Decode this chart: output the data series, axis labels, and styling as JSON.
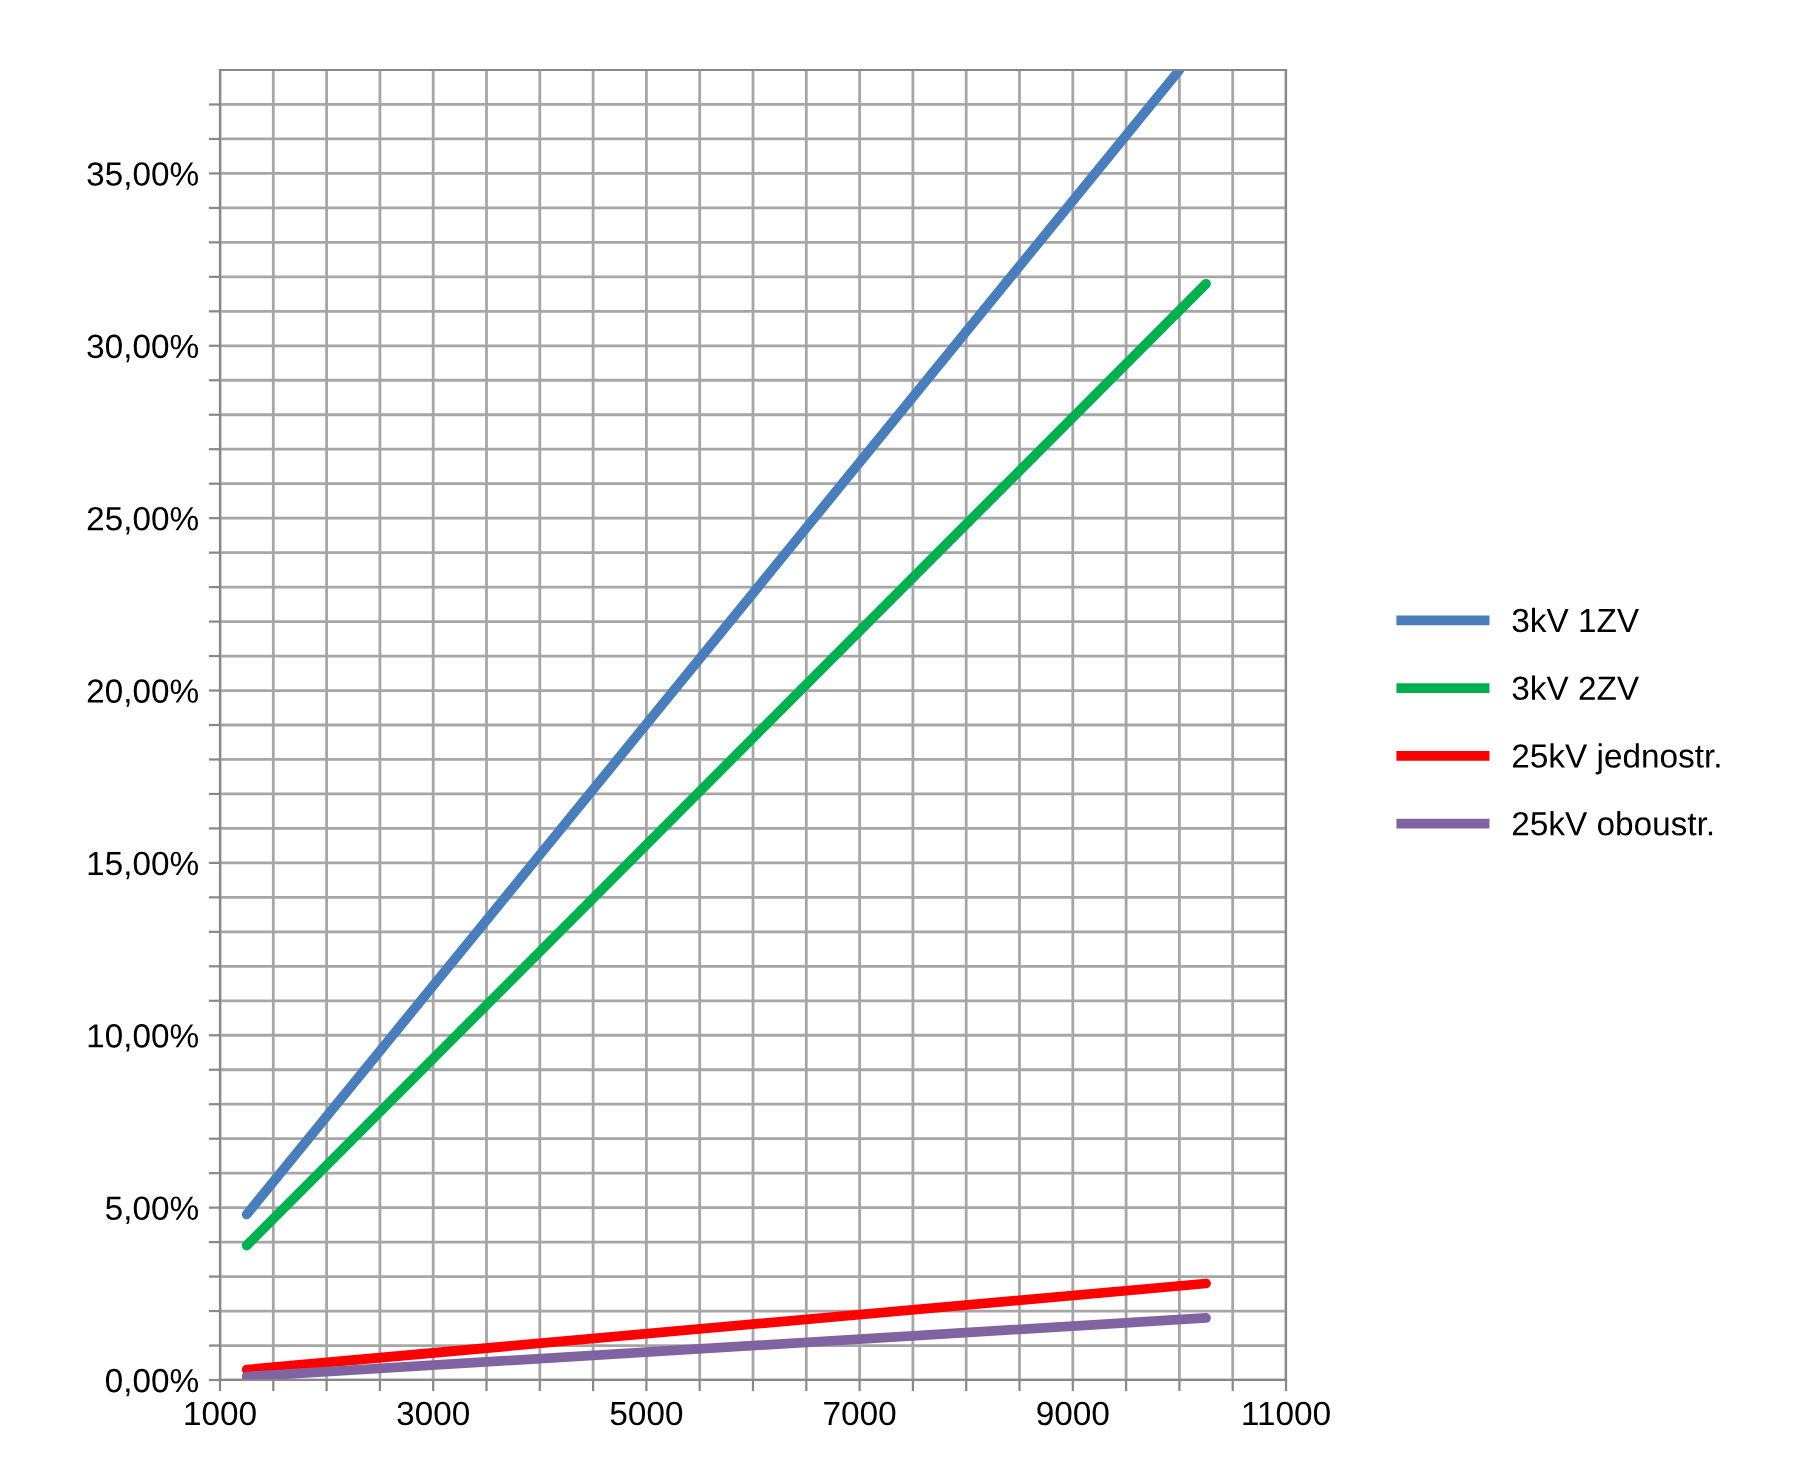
{
  "chart_data": {
    "type": "line",
    "x": [
      1250,
      10250
    ],
    "series": [
      {
        "name": "3kV 1ZV",
        "color": "#4a7ebb",
        "x": [
          1250,
          10000
        ],
        "values": [
          4.8,
          38
        ]
      },
      {
        "name": "3kV 2ZV",
        "color": "#00b050",
        "values": [
          3.9,
          31.8
        ]
      },
      {
        "name": "25kV jednostr.",
        "color": "#ff0000",
        "values": [
          0.3,
          2.8
        ]
      },
      {
        "name": "25kV oboustr.",
        "color": "#8064a2",
        "values": [
          0.1,
          1.8
        ]
      }
    ],
    "xlim": [
      1000,
      11000
    ],
    "xticks": [
      1000,
      {
        "value": 1500,
        "label": null
      },
      {
        "value": 2000,
        "label": null
      },
      {
        "value": 2500,
        "label": null
      },
      3000,
      {
        "value": 3500,
        "label": null
      },
      {
        "value": 4000,
        "label": null
      },
      {
        "value": 4500,
        "label": null
      },
      5000,
      {
        "value": 5500,
        "label": null
      },
      {
        "value": 6000,
        "label": null
      },
      {
        "value": 6500,
        "label": null
      },
      7000,
      {
        "value": 7500,
        "label": null
      },
      {
        "value": 8000,
        "label": null
      },
      {
        "value": 8500,
        "label": null
      },
      9000,
      {
        "value": 9500,
        "label": null
      },
      {
        "value": 10000,
        "label": null
      },
      {
        "value": 10500,
        "label": null
      },
      11000
    ],
    "ylim": [
      0,
      38
    ],
    "yticks": [
      {
        "value": 0,
        "label": "0,00%"
      },
      {
        "value": 1,
        "label": null
      },
      {
        "value": 2,
        "label": null
      },
      {
        "value": 3,
        "label": null
      },
      {
        "value": 4,
        "label": null
      },
      {
        "value": 5,
        "label": "5,00%"
      },
      {
        "value": 6,
        "label": null
      },
      {
        "value": 7,
        "label": null
      },
      {
        "value": 8,
        "label": null
      },
      {
        "value": 9,
        "label": null
      },
      {
        "value": 10,
        "label": "10,00%"
      },
      {
        "value": 11,
        "label": null
      },
      {
        "value": 12,
        "label": null
      },
      {
        "value": 13,
        "label": null
      },
      {
        "value": 14,
        "label": null
      },
      {
        "value": 15,
        "label": "15,00%"
      },
      {
        "value": 16,
        "label": null
      },
      {
        "value": 17,
        "label": null
      },
      {
        "value": 18,
        "label": null
      },
      {
        "value": 19,
        "label": null
      },
      {
        "value": 20,
        "label": "20,00%"
      },
      {
        "value": 21,
        "label": null
      },
      {
        "value": 22,
        "label": null
      },
      {
        "value": 23,
        "label": null
      },
      {
        "value": 24,
        "label": null
      },
      {
        "value": 25,
        "label": "25,00%"
      },
      {
        "value": 26,
        "label": null
      },
      {
        "value": 27,
        "label": null
      },
      {
        "value": 28,
        "label": null
      },
      {
        "value": 29,
        "label": null
      },
      {
        "value": 30,
        "label": "30,00%"
      },
      {
        "value": 31,
        "label": null
      },
      {
        "value": 32,
        "label": null
      },
      {
        "value": 33,
        "label": null
      },
      {
        "value": 34,
        "label": null
      },
      {
        "value": 35,
        "label": "35,00%"
      },
      {
        "value": 36,
        "label": null
      },
      {
        "value": 37,
        "label": null
      }
    ],
    "grid": true,
    "legend": "right",
    "marker": "none",
    "line_style": "solid"
  }
}
